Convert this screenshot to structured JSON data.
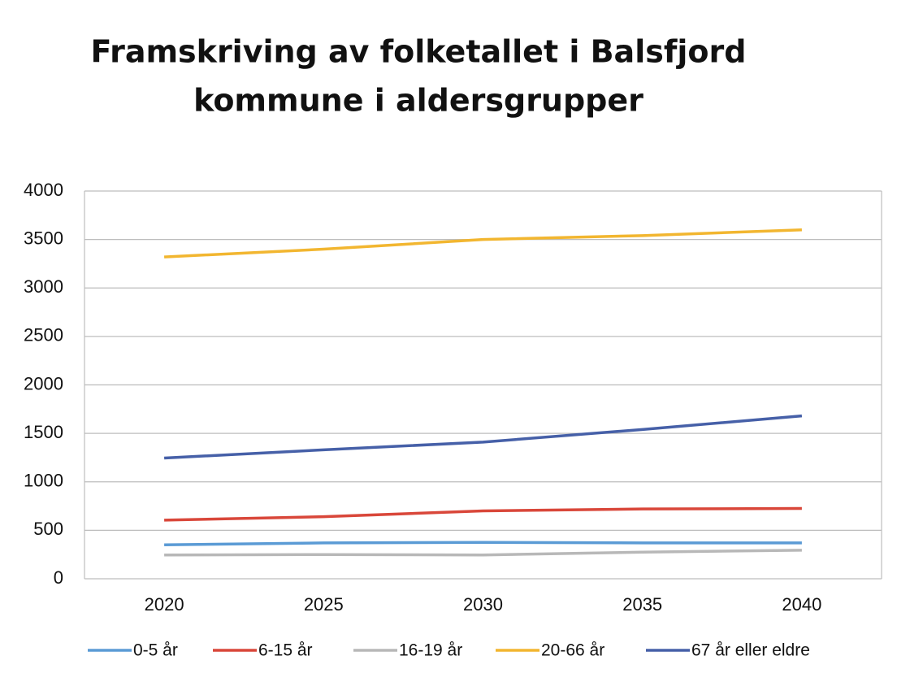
{
  "chart_data": {
    "type": "line",
    "title": [
      "Framskriving av folketallet i Balsfjord",
      "kommune i aldersgrupper"
    ],
    "categories": [
      "2020",
      "2025",
      "2030",
      "2035",
      "2040"
    ],
    "series": [
      {
        "name": "0-5 år",
        "color": "#5b9bd5",
        "values": [
          350,
          370,
          375,
          370,
          370
        ]
      },
      {
        "name": "6-15 år",
        "color": "#d9473a",
        "values": [
          605,
          640,
          700,
          720,
          725
        ]
      },
      {
        "name": "16-19 år",
        "color": "#b8b8b8",
        "values": [
          245,
          250,
          245,
          275,
          295
        ]
      },
      {
        "name": "20-66 år",
        "color": "#f2b630",
        "values": [
          3320,
          3400,
          3500,
          3540,
          3600
        ]
      },
      {
        "name": "67 år eller eldre",
        "color": "#4660a8",
        "values": [
          1245,
          1330,
          1410,
          1540,
          1680
        ]
      }
    ],
    "ylim": [
      0,
      4000
    ],
    "yticks": [
      0,
      500,
      1000,
      1500,
      2000,
      2500,
      3000,
      3500,
      4000
    ],
    "grid": true,
    "legend": "bottom"
  }
}
